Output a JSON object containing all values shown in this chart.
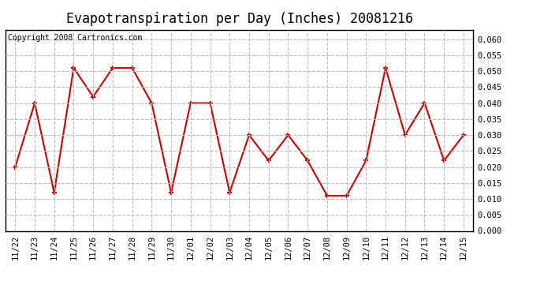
{
  "title": "Evapotranspiration per Day (Inches) 20081216",
  "copyright": "Copyright 2008 Cartronics.com",
  "dates": [
    "11/22",
    "11/23",
    "11/24",
    "11/25",
    "11/26",
    "11/27",
    "11/28",
    "11/29",
    "11/30",
    "12/01",
    "12/02",
    "12/03",
    "12/04",
    "12/05",
    "12/06",
    "12/07",
    "12/08",
    "12/09",
    "12/10",
    "12/11",
    "12/12",
    "12/13",
    "12/14",
    "12/15"
  ],
  "values": [
    0.02,
    0.04,
    0.012,
    0.051,
    0.042,
    0.051,
    0.051,
    0.04,
    0.012,
    0.04,
    0.04,
    0.012,
    0.03,
    0.022,
    0.03,
    0.022,
    0.011,
    0.011,
    0.022,
    0.051,
    0.03,
    0.04,
    0.022,
    0.03
  ],
  "line_color": "#cc0000",
  "marker_color": "#cc0000",
  "marker_style": "+",
  "marker_size": 5,
  "line_width": 1.5,
  "ylim": [
    0.0,
    0.063
  ],
  "yticks": [
    0.0,
    0.005,
    0.01,
    0.015,
    0.02,
    0.025,
    0.03,
    0.035,
    0.04,
    0.045,
    0.05,
    0.055,
    0.06
  ],
  "grid_color": "#bbbbbb",
  "grid_style": "--",
  "bg_color": "#ffffff",
  "plot_bg_color": "#ffffff",
  "title_fontsize": 12,
  "copyright_fontsize": 7,
  "tick_fontsize": 7.5,
  "title_font": "monospace",
  "copyright_font": "monospace"
}
